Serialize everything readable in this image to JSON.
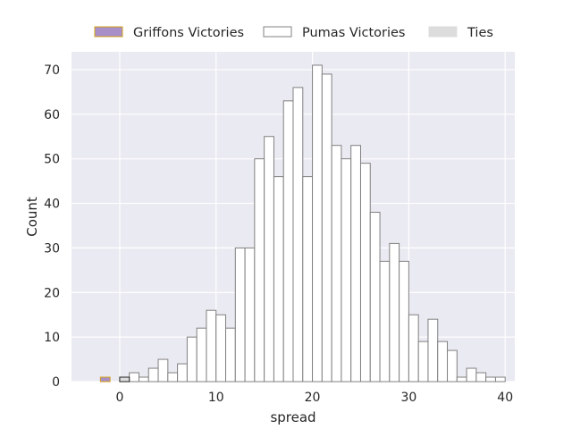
{
  "chart_data": {
    "type": "bar",
    "subtype": "histogram",
    "xlabel": "spread",
    "ylabel": "Count",
    "xlim": [
      -5,
      41
    ],
    "ylim": [
      0,
      74
    ],
    "xticks": [
      0,
      10,
      20,
      30,
      40
    ],
    "yticks": [
      0,
      10,
      20,
      30,
      40,
      50,
      60,
      70
    ],
    "grid": true,
    "legend_position": "top",
    "bin_width": 1,
    "series": [
      {
        "name": "Griffons Victories",
        "color": "#a98fc7",
        "edge_color": "#d4a017",
        "bins": [
          {
            "x": -2,
            "count": 1
          }
        ]
      },
      {
        "name": "Pumas Victories",
        "color": "#ffffff",
        "edge_color": "#808080",
        "bins": [
          {
            "x": 1,
            "count": 2
          },
          {
            "x": 2,
            "count": 1
          },
          {
            "x": 3,
            "count": 3
          },
          {
            "x": 4,
            "count": 5
          },
          {
            "x": 5,
            "count": 2
          },
          {
            "x": 6,
            "count": 4
          },
          {
            "x": 7,
            "count": 10
          },
          {
            "x": 8,
            "count": 12
          },
          {
            "x": 9,
            "count": 16
          },
          {
            "x": 10,
            "count": 15
          },
          {
            "x": 11,
            "count": 12
          },
          {
            "x": 12,
            "count": 30
          },
          {
            "x": 13,
            "count": 30
          },
          {
            "x": 14,
            "count": 50
          },
          {
            "x": 15,
            "count": 55
          },
          {
            "x": 16,
            "count": 46
          },
          {
            "x": 17,
            "count": 63
          },
          {
            "x": 18,
            "count": 66
          },
          {
            "x": 19,
            "count": 46
          },
          {
            "x": 20,
            "count": 71
          },
          {
            "x": 21,
            "count": 69
          },
          {
            "x": 22,
            "count": 53
          },
          {
            "x": 23,
            "count": 50
          },
          {
            "x": 24,
            "count": 53
          },
          {
            "x": 25,
            "count": 49
          },
          {
            "x": 26,
            "count": 38
          },
          {
            "x": 27,
            "count": 27
          },
          {
            "x": 28,
            "count": 31
          },
          {
            "x": 29,
            "count": 27
          },
          {
            "x": 30,
            "count": 15
          },
          {
            "x": 31,
            "count": 9
          },
          {
            "x": 32,
            "count": 14
          },
          {
            "x": 33,
            "count": 9
          },
          {
            "x": 34,
            "count": 7
          },
          {
            "x": 35,
            "count": 1
          },
          {
            "x": 36,
            "count": 3
          },
          {
            "x": 37,
            "count": 2
          },
          {
            "x": 38,
            "count": 1
          },
          {
            "x": 39,
            "count": 1
          }
        ]
      },
      {
        "name": "Ties",
        "color": "#dcdcdc",
        "edge_color": "#222222",
        "bins": [
          {
            "x": 0,
            "count": 1
          }
        ]
      }
    ],
    "colors": {
      "plot_background": "#eaeaf2",
      "grid": "#ffffff"
    }
  }
}
